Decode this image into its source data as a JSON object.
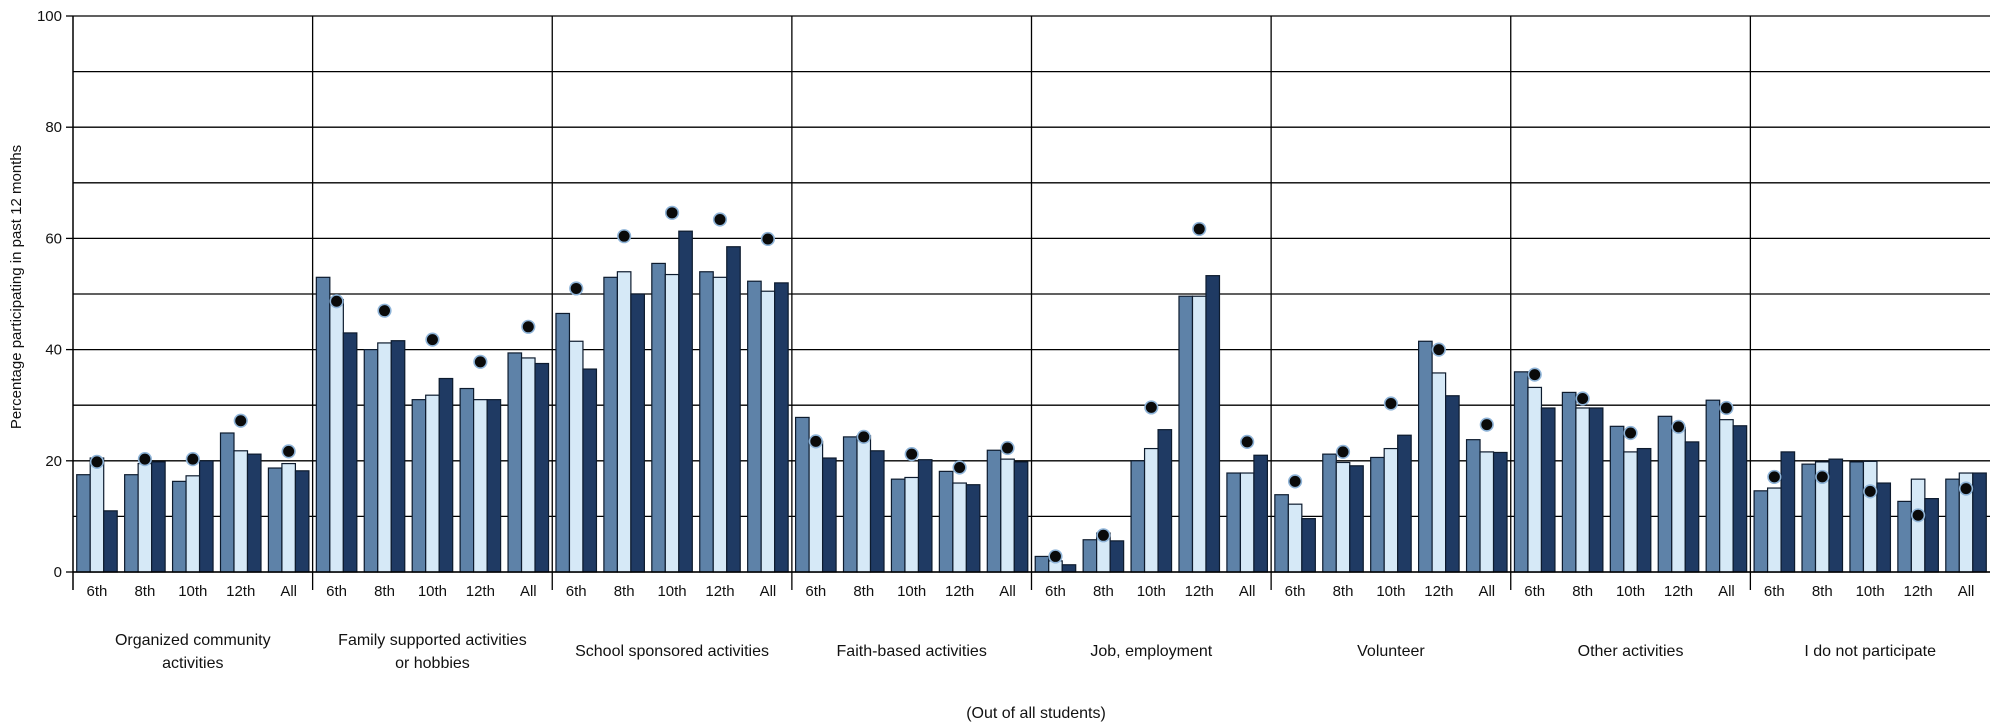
{
  "chart_data": {
    "type": "bar",
    "ylabel": "Percentage participating in past 12 months",
    "xlabel": "(Out of all students)",
    "ylim": [
      0,
      100
    ],
    "yticks": [
      0,
      20,
      40,
      60,
      80,
      100
    ],
    "grid": true,
    "legend": "none",
    "colors": {
      "series1": "#5e82a8",
      "series2": "#d6e9f7",
      "series3": "#1f3a63",
      "marker": "#0a0a0a",
      "marker_ring": "#8fb4d8"
    },
    "subcategories": [
      "6th",
      "8th",
      "10th",
      "12th",
      "All"
    ],
    "groups": [
      {
        "label_lines": [
          "Organized community",
          "activities"
        ],
        "bars": [
          [
            17.5,
            20.5,
            11
          ],
          [
            17.5,
            19.5,
            19.8
          ],
          [
            16.3,
            17.3,
            20
          ],
          [
            25,
            21.8,
            21.2
          ],
          [
            18.7,
            19.5,
            18.2
          ]
        ],
        "markers": [
          19.8,
          20.3,
          20.3,
          27.2,
          21.7
        ]
      },
      {
        "label_lines": [
          "Family supported activities",
          "or hobbies"
        ],
        "bars": [
          [
            53,
            49,
            43
          ],
          [
            40,
            41.2,
            41.6
          ],
          [
            31,
            31.8,
            34.8
          ],
          [
            33,
            31,
            31
          ],
          [
            39.4,
            38.5,
            37.5
          ]
        ],
        "markers": [
          48.7,
          47,
          41.8,
          37.8,
          44.1
        ]
      },
      {
        "label_lines": [
          "School sponsored activities"
        ],
        "bars": [
          [
            46.5,
            41.5,
            36.5
          ],
          [
            53,
            54,
            50
          ],
          [
            55.5,
            53.5,
            61.3
          ],
          [
            54,
            53,
            58.5
          ],
          [
            52.3,
            50.5,
            52
          ]
        ],
        "markers": [
          51,
          60.4,
          64.6,
          63.4,
          59.9
        ]
      },
      {
        "label_lines": [
          "Faith-based activities"
        ],
        "bars": [
          [
            27.8,
            23.5,
            20.5
          ],
          [
            24.3,
            24.5,
            21.8
          ],
          [
            16.7,
            17,
            20.2
          ],
          [
            18.1,
            16,
            15.7
          ],
          [
            21.9,
            20.3,
            19.8
          ]
        ],
        "markers": [
          23.5,
          24.3,
          21.2,
          18.8,
          22.3
        ]
      },
      {
        "label_lines": [
          "Job, employment"
        ],
        "bars": [
          [
            2.8,
            2,
            1.3
          ],
          [
            5.8,
            7,
            5.6
          ],
          [
            20,
            22.2,
            25.6
          ],
          [
            49.6,
            49.6,
            53.3
          ],
          [
            17.8,
            17.8,
            21
          ]
        ],
        "markers": [
          2.8,
          6.6,
          29.6,
          61.7,
          23.4
        ]
      },
      {
        "label_lines": [
          "Volunteer"
        ],
        "bars": [
          [
            13.9,
            12.2,
            9.6
          ],
          [
            21.2,
            19.7,
            19.1
          ],
          [
            20.6,
            22.2,
            24.6
          ],
          [
            41.5,
            35.8,
            31.7
          ],
          [
            23.8,
            21.6,
            21.5
          ]
        ],
        "markers": [
          16.3,
          21.6,
          30.3,
          40,
          26.5
        ]
      },
      {
        "label_lines": [
          "Other activities"
        ],
        "bars": [
          [
            36,
            33.2,
            29.5
          ],
          [
            32.3,
            29.5,
            29.5
          ],
          [
            26.2,
            21.6,
            22.2
          ],
          [
            28,
            26,
            23.4
          ],
          [
            30.9,
            27.4,
            26.3
          ]
        ],
        "markers": [
          35.5,
          31.2,
          25,
          26.1,
          29.5
        ]
      },
      {
        "label_lines": [
          "I do not participate"
        ],
        "bars": [
          [
            14.6,
            15.1,
            21.6
          ],
          [
            19.4,
            19.8,
            20.3
          ],
          [
            19.8,
            19.9,
            16
          ],
          [
            12.7,
            16.7,
            13.2
          ],
          [
            16.7,
            17.8,
            17.8
          ]
        ],
        "markers": [
          17.1,
          17.1,
          14.5,
          10.2,
          15
        ]
      }
    ]
  }
}
